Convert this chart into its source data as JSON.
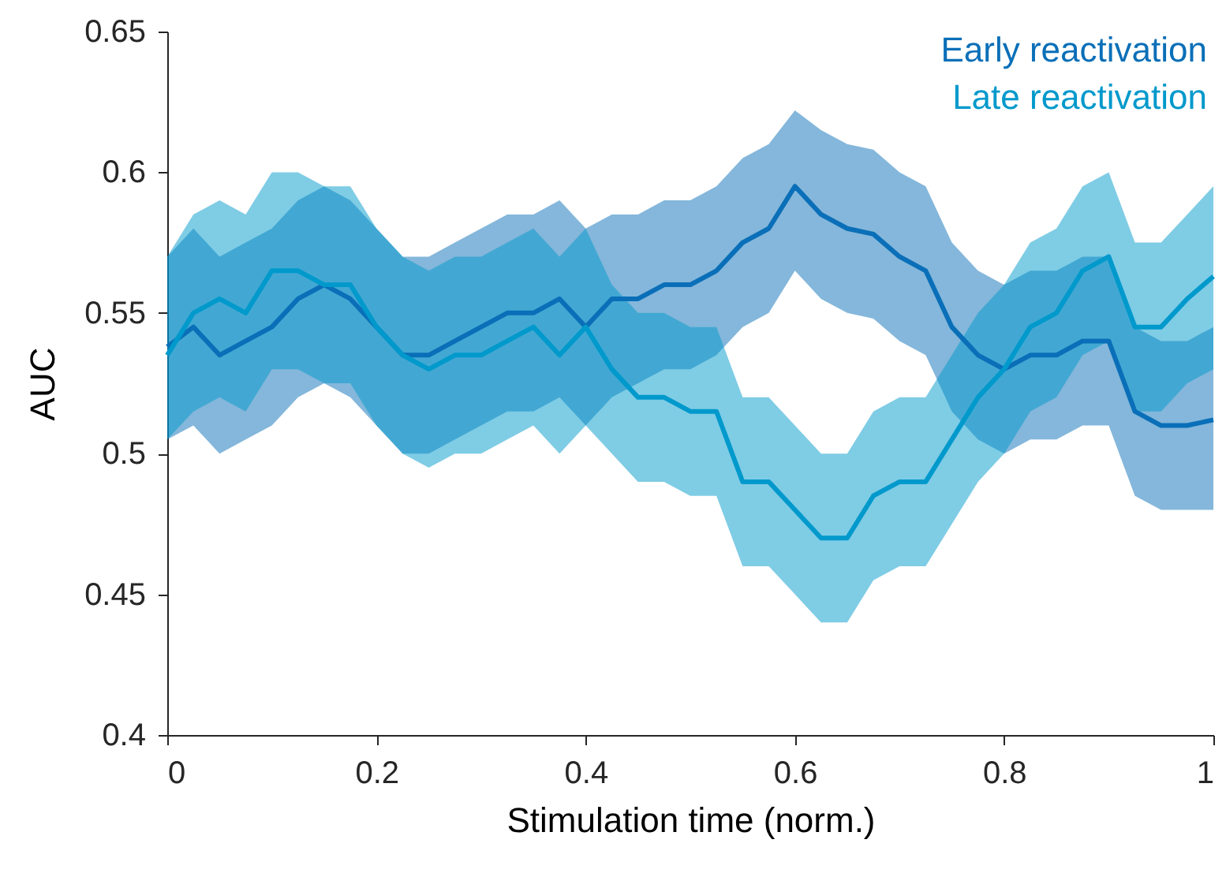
{
  "chart_data": {
    "type": "line",
    "xlabel": "Stimulation time (norm.)",
    "ylabel": "AUC",
    "x": [
      0,
      0.025,
      0.05,
      0.075,
      0.1,
      0.125,
      0.15,
      0.175,
      0.2,
      0.225,
      0.25,
      0.275,
      0.3,
      0.325,
      0.35,
      0.375,
      0.4,
      0.425,
      0.45,
      0.475,
      0.5,
      0.525,
      0.55,
      0.575,
      0.6,
      0.625,
      0.65,
      0.675,
      0.7,
      0.725,
      0.75,
      0.775,
      0.8,
      0.825,
      0.85,
      0.875,
      0.9,
      0.925,
      0.95,
      0.975,
      1
    ],
    "series": [
      {
        "name": "Early reactivation",
        "color": "#0a6fb8",
        "values": [
          0.538,
          0.545,
          0.535,
          0.54,
          0.545,
          0.555,
          0.56,
          0.555,
          0.545,
          0.535,
          0.535,
          0.54,
          0.545,
          0.55,
          0.55,
          0.555,
          0.545,
          0.555,
          0.555,
          0.56,
          0.56,
          0.565,
          0.575,
          0.58,
          0.595,
          0.585,
          0.58,
          0.578,
          0.57,
          0.565,
          0.545,
          0.535,
          0.53,
          0.535,
          0.535,
          0.54,
          0.54,
          0.515,
          0.51,
          0.51,
          0.512
        ],
        "lower": [
          0.505,
          0.51,
          0.5,
          0.505,
          0.51,
          0.52,
          0.525,
          0.52,
          0.51,
          0.5,
          0.5,
          0.505,
          0.51,
          0.515,
          0.515,
          0.52,
          0.51,
          0.52,
          0.525,
          0.53,
          0.53,
          0.535,
          0.545,
          0.55,
          0.565,
          0.555,
          0.55,
          0.548,
          0.54,
          0.535,
          0.515,
          0.505,
          0.5,
          0.505,
          0.505,
          0.51,
          0.51,
          0.485,
          0.48,
          0.48,
          0.48
        ],
        "upper": [
          0.57,
          0.58,
          0.57,
          0.575,
          0.58,
          0.59,
          0.595,
          0.59,
          0.58,
          0.57,
          0.57,
          0.575,
          0.58,
          0.585,
          0.585,
          0.59,
          0.58,
          0.585,
          0.585,
          0.59,
          0.59,
          0.595,
          0.605,
          0.61,
          0.622,
          0.615,
          0.61,
          0.608,
          0.6,
          0.595,
          0.575,
          0.565,
          0.56,
          0.565,
          0.565,
          0.57,
          0.57,
          0.545,
          0.54,
          0.54,
          0.545
        ]
      },
      {
        "name": "Late reactivation",
        "color": "#0099cc",
        "values": [
          0.535,
          0.55,
          0.555,
          0.55,
          0.565,
          0.565,
          0.56,
          0.56,
          0.545,
          0.535,
          0.53,
          0.535,
          0.535,
          0.54,
          0.545,
          0.535,
          0.545,
          0.53,
          0.52,
          0.52,
          0.515,
          0.515,
          0.49,
          0.49,
          0.48,
          0.47,
          0.47,
          0.485,
          0.49,
          0.49,
          0.505,
          0.52,
          0.53,
          0.545,
          0.55,
          0.565,
          0.57,
          0.545,
          0.545,
          0.555,
          0.563
        ],
        "lower": [
          0.505,
          0.515,
          0.52,
          0.515,
          0.53,
          0.53,
          0.525,
          0.525,
          0.51,
          0.5,
          0.495,
          0.5,
          0.5,
          0.505,
          0.51,
          0.5,
          0.51,
          0.5,
          0.49,
          0.49,
          0.485,
          0.485,
          0.46,
          0.46,
          0.45,
          0.44,
          0.44,
          0.455,
          0.46,
          0.46,
          0.475,
          0.49,
          0.5,
          0.515,
          0.52,
          0.535,
          0.54,
          0.515,
          0.515,
          0.525,
          0.53
        ],
        "upper": [
          0.57,
          0.585,
          0.59,
          0.585,
          0.6,
          0.6,
          0.595,
          0.595,
          0.58,
          0.57,
          0.565,
          0.57,
          0.57,
          0.575,
          0.58,
          0.57,
          0.58,
          0.56,
          0.55,
          0.55,
          0.545,
          0.545,
          0.52,
          0.52,
          0.51,
          0.5,
          0.5,
          0.515,
          0.52,
          0.52,
          0.535,
          0.55,
          0.56,
          0.575,
          0.58,
          0.595,
          0.6,
          0.575,
          0.575,
          0.585,
          0.595
        ]
      }
    ],
    "xlim": [
      0,
      1
    ],
    "xticks": [
      0,
      0.2,
      0.4,
      0.6,
      0.8,
      1
    ],
    "ylim": [
      0.4,
      0.65
    ],
    "yticks": [
      0.4,
      0.45,
      0.5,
      0.55,
      0.6,
      0.65
    ],
    "grid": false,
    "legend": "top right",
    "line_style": "solid",
    "marker": "none"
  }
}
